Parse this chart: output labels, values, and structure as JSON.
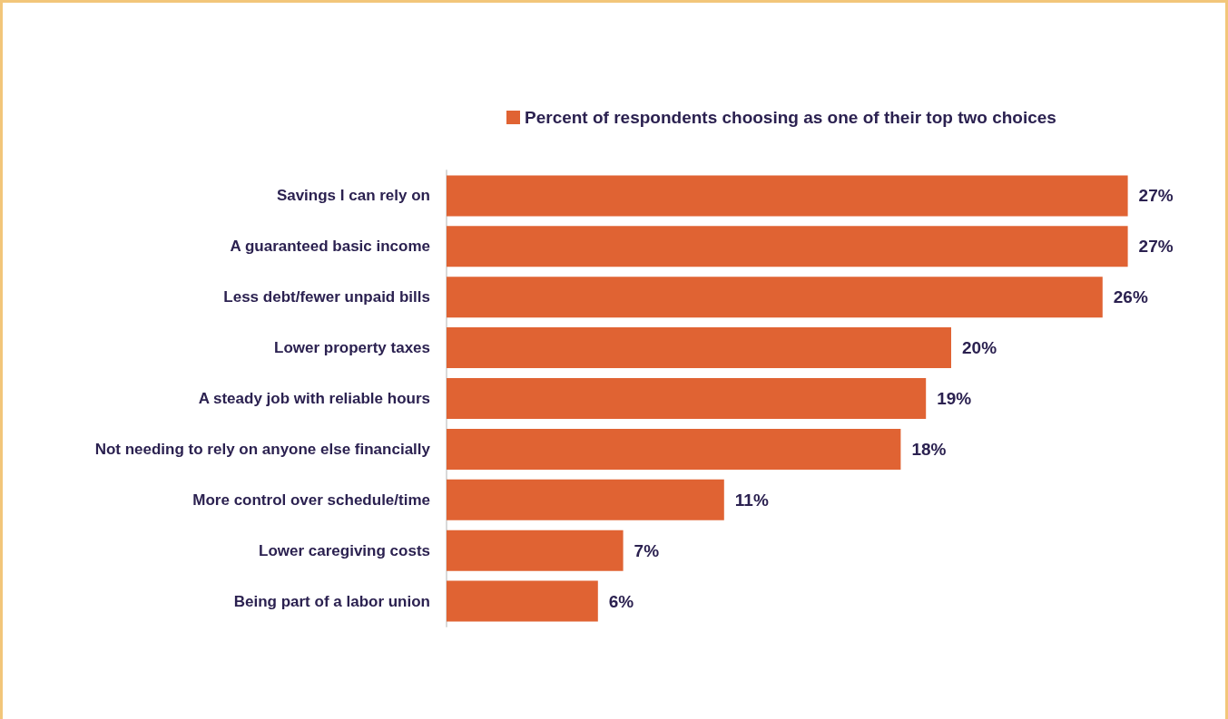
{
  "chart_data": {
    "type": "bar",
    "orientation": "horizontal",
    "categories": [
      "Savings I can rely on",
      "A guaranteed basic income",
      "Less debt/fewer unpaid bills",
      "Lower property taxes",
      "A steady job with reliable hours",
      "Not needing to rely on anyone else financially",
      "More control over schedule/time",
      "Lower caregiving costs",
      "Being part of a labor union"
    ],
    "series": [
      {
        "name": "Percent of respondents choosing as one of their top two choices",
        "color": "#e06333",
        "values": [
          27,
          27,
          26,
          20,
          19,
          18,
          11,
          7,
          6
        ],
        "value_labels": [
          "27%",
          "27%",
          "26%",
          "20%",
          "19%",
          "18%",
          "11%",
          "7%",
          "6%"
        ]
      }
    ],
    "tick_labels": "y",
    "legend": "top"
  }
}
